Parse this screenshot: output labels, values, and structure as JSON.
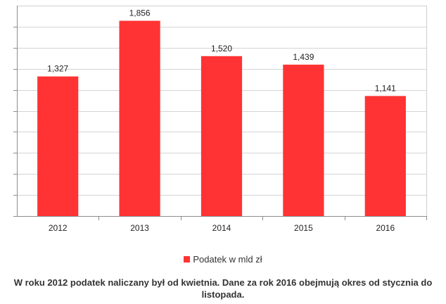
{
  "chart_data": {
    "type": "bar",
    "categories": [
      "2012",
      "2013",
      "2014",
      "2015",
      "2016"
    ],
    "series": [
      {
        "name": "Podatek w mld zł",
        "values": [
          1.327,
          1.856,
          1.52,
          1.439,
          1.141
        ]
      }
    ],
    "data_labels": [
      "1,327",
      "1,856",
      "1,520",
      "1,439",
      "1,141"
    ],
    "ylim": [
      0,
      2
    ],
    "y_gridline_step": 0.2,
    "y_tick_labels_shown": false,
    "grid": true,
    "legend_position": "bottom",
    "bar_color": "#ff3333"
  },
  "caption": "W roku 2012 podatek naliczany był od kwietnia. Dane za rok 2016 obejmują okres od stycznia do listopada."
}
